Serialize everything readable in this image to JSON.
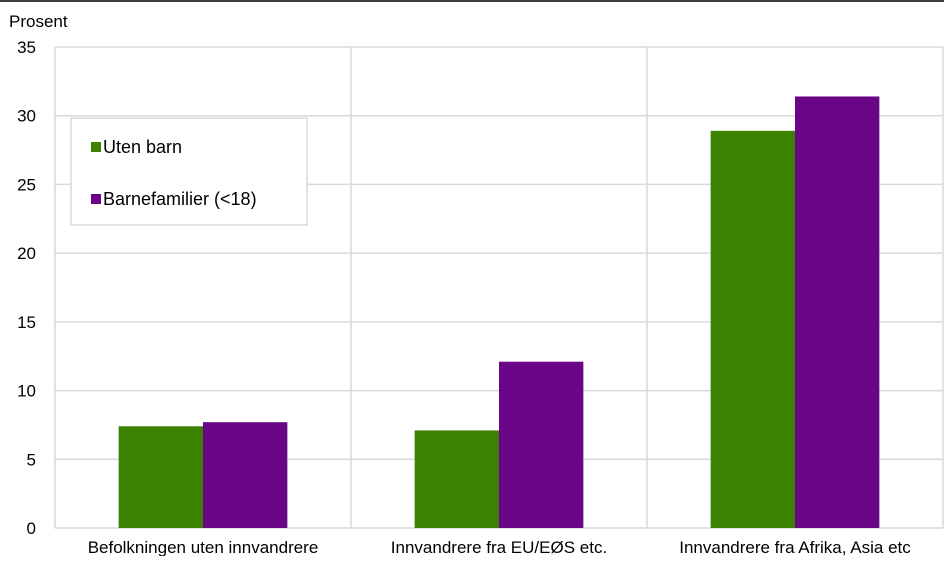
{
  "chart_data": {
    "type": "bar",
    "unit_label": "Prosent",
    "categories": [
      "Befolkningen uten innvandrere",
      "Innvandrere fra EU/EØS etc.",
      "Innvandrere fra Afrika, Asia etc"
    ],
    "series": [
      {
        "name": "Uten barn",
        "color": "#3c8200",
        "values": [
          7.4,
          7.1,
          28.9
        ]
      },
      {
        "name": "Barnefamilier (<18)",
        "color": "#6a0587",
        "values": [
          7.7,
          12.1,
          31.4
        ]
      }
    ],
    "y_ticks": [
      "0",
      "5",
      "10",
      "15",
      "20",
      "25",
      "30",
      "35"
    ],
    "ylim": [
      0,
      35
    ],
    "grid": true,
    "legend_position": "top-left"
  }
}
